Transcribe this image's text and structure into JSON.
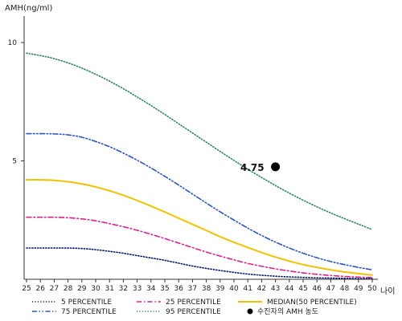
{
  "chart_data": {
    "type": "line",
    "ylabel": "AMH(ng/ml)",
    "xlabel": "나이",
    "x": [
      25,
      26,
      27,
      28,
      29,
      30,
      31,
      32,
      33,
      34,
      35,
      36,
      37,
      38,
      39,
      40,
      41,
      42,
      43,
      44,
      45,
      46,
      47,
      48,
      49,
      50
    ],
    "xlim": [
      25,
      50
    ],
    "ylim": [
      0,
      11
    ],
    "yticks": [
      5,
      10
    ],
    "grid": false,
    "legend_position": "bottom",
    "series": [
      {
        "name": "5 PERCENTILE",
        "color": "#0a1a6e",
        "dash": "dot",
        "values": [
          1.32,
          1.32,
          1.32,
          1.32,
          1.3,
          1.25,
          1.18,
          1.1,
          1.0,
          0.9,
          0.8,
          0.68,
          0.56,
          0.46,
          0.37,
          0.29,
          0.22,
          0.17,
          0.13,
          0.1,
          0.08,
          0.06,
          0.05,
          0.04,
          0.03,
          0.03
        ]
      },
      {
        "name": "25 PERCENTILE",
        "color": "#e0208a",
        "dash": "dashdot",
        "values": [
          2.62,
          2.62,
          2.62,
          2.6,
          2.55,
          2.47,
          2.35,
          2.22,
          2.07,
          1.9,
          1.72,
          1.53,
          1.34,
          1.15,
          0.98,
          0.82,
          0.67,
          0.55,
          0.44,
          0.35,
          0.27,
          0.21,
          0.16,
          0.12,
          0.09,
          0.07
        ]
      },
      {
        "name": "MEDIAN(50 PERCENTILE)",
        "color": "#f2c200",
        "dash": "solid",
        "values": [
          4.2,
          4.2,
          4.18,
          4.12,
          4.03,
          3.9,
          3.74,
          3.55,
          3.33,
          3.09,
          2.84,
          2.58,
          2.32,
          2.06,
          1.8,
          1.56,
          1.34,
          1.13,
          0.94,
          0.77,
          0.62,
          0.5,
          0.4,
          0.31,
          0.24,
          0.18
        ]
      },
      {
        "name": "75 PERCENTILE",
        "color": "#2d55c8",
        "dash": "dashdotdot",
        "values": [
          6.15,
          6.15,
          6.14,
          6.1,
          6.0,
          5.82,
          5.6,
          5.33,
          5.03,
          4.7,
          4.35,
          3.98,
          3.6,
          3.22,
          2.85,
          2.5,
          2.16,
          1.85,
          1.57,
          1.32,
          1.1,
          0.91,
          0.75,
          0.62,
          0.5,
          0.4
        ]
      },
      {
        "name": "95 PERCENTILE",
        "color": "#2e8b57",
        "dash": "dot",
        "values": [
          9.55,
          9.45,
          9.32,
          9.14,
          8.92,
          8.66,
          8.37,
          8.05,
          7.7,
          7.34,
          6.96,
          6.57,
          6.18,
          5.79,
          5.4,
          5.02,
          4.65,
          4.3,
          3.96,
          3.64,
          3.34,
          3.06,
          2.8,
          2.56,
          2.33,
          2.1
        ]
      }
    ],
    "marker": {
      "legend_label": "수진자의 AMH 농도",
      "x": 43,
      "y": 4.75,
      "label": "4.75",
      "color": "#000000"
    }
  }
}
